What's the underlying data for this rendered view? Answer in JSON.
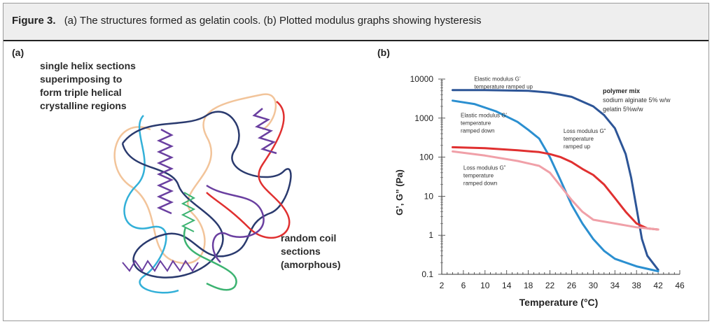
{
  "caption": {
    "figure_label": "Figure 3.",
    "text": "(a) The structures formed as gelatin cools. (b) Plotted modulus graphs showing hysteresis"
  },
  "panel_a": {
    "label": "(a)",
    "annotation_helix": [
      "single helix sections",
      "superimposing to",
      "form triple helical",
      "crystalline regions"
    ],
    "annotation_coil": [
      "random coil",
      "sections",
      "(amorphous)"
    ],
    "colors": {
      "blue": "#2a3a6e",
      "tan": "#f2c49a",
      "cyan": "#33b0d8",
      "green": "#3cb371",
      "purple": "#6a3fa0",
      "red": "#e03030"
    }
  },
  "panel_b": {
    "label": "(b)",
    "legend_title": "polymer mix",
    "legend_lines": [
      "sodium alginate 5% w/w",
      "gelatin 5%w/w"
    ]
  },
  "chart_data": {
    "type": "line",
    "title": "",
    "xlabel": "Temperature (°C)",
    "ylabel": "G’, G” (Pa)",
    "xlim": [
      2,
      46
    ],
    "ylim": [
      0.1,
      10000
    ],
    "y_scale": "log",
    "x_ticks": [
      2,
      6,
      10,
      14,
      18,
      22,
      26,
      30,
      34,
      38,
      42,
      46
    ],
    "y_ticks": [
      0.1,
      1,
      10,
      100,
      1000,
      10000
    ],
    "y_tick_labels": [
      "0.1",
      "1",
      "10",
      "100",
      "1000",
      "10000"
    ],
    "series": [
      {
        "name": "Elastic modulus G’ temperature ramped up",
        "color": "#2d5597",
        "label_lines": [
          "Elastic modulus G’",
          "temperature ramped up"
        ],
        "x": [
          4,
          10,
          18,
          22,
          26,
          30,
          32,
          34,
          36,
          37,
          38,
          39,
          40,
          42
        ],
        "y": [
          5200,
          5200,
          5000,
          4500,
          3500,
          2000,
          1200,
          550,
          120,
          30,
          5,
          0.8,
          0.3,
          0.13
        ]
      },
      {
        "name": "Elastic modulus G’ temperature ramped down",
        "color": "#2b8fd0",
        "label_lines": [
          "Elastic modulus G’",
          "temperature",
          "ramped down"
        ],
        "x": [
          4,
          8,
          12,
          16,
          18,
          20,
          22,
          24,
          26,
          28,
          30,
          32,
          34,
          38,
          42
        ],
        "y": [
          2800,
          2300,
          1500,
          800,
          500,
          300,
          100,
          25,
          6,
          2,
          0.8,
          0.4,
          0.25,
          0.16,
          0.12
        ]
      },
      {
        "name": "Loss modulus G” temperature ramped up",
        "color": "#e03030",
        "label_lines": [
          "Loss modulus G”",
          "temperature",
          "ramped up"
        ],
        "x": [
          4,
          10,
          16,
          20,
          22,
          24,
          26,
          28,
          30,
          32,
          34,
          36,
          38,
          40,
          42
        ],
        "y": [
          180,
          170,
          150,
          135,
          120,
          100,
          75,
          50,
          35,
          20,
          9,
          4,
          2,
          1.5,
          1.4
        ]
      },
      {
        "name": "Loss modulus G” temperature ramped down",
        "color": "#f0a0a8",
        "label_lines": [
          "Loss modulus G”",
          "temperature",
          "ramped down"
        ],
        "x": [
          4,
          10,
          16,
          20,
          22,
          24,
          26,
          28,
          30,
          34,
          38,
          42
        ],
        "y": [
          140,
          110,
          80,
          60,
          40,
          18,
          8,
          4,
          2.5,
          2.0,
          1.6,
          1.4
        ]
      }
    ]
  }
}
